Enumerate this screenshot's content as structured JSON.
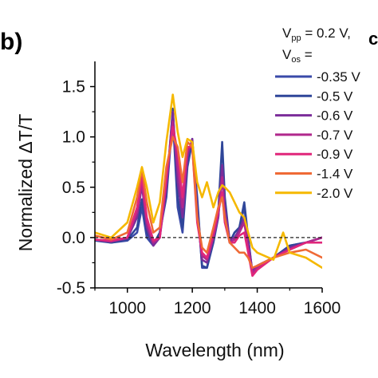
{
  "panel_label": "b)",
  "clipped_label": "c",
  "chart_data": {
    "type": "line",
    "title": "",
    "xlabel": "Wavelength (nm)",
    "ylabel_prefix": "Normalized ",
    "ylabel_main": "ΔT/T",
    "xlim": [
      900,
      1600
    ],
    "ylim": [
      -0.5,
      1.75
    ],
    "xticks": [
      1000,
      1200,
      1400,
      1600
    ],
    "xtick_labels": [
      "1000",
      "1200",
      "1400",
      "1600"
    ],
    "yticks": [
      -0.5,
      0.0,
      0.5,
      1.0,
      1.5
    ],
    "ytick_labels": [
      "-0.5",
      "0.0",
      "0.5",
      "1.0",
      "1.5"
    ],
    "zero_line": true,
    "grid": false,
    "legend": {
      "placement": "top-right",
      "line1_prefix": "V",
      "line1_sub": "pp",
      "line1_suffix": " = 0.2 V,",
      "line2_prefix": "V",
      "line2_sub": "os",
      "line2_suffix": " ="
    },
    "series": [
      {
        "name": "-0.35 V",
        "color": "#3a4aa8",
        "points": [
          [
            900,
            -0.03
          ],
          [
            950,
            -0.05
          ],
          [
            1000,
            -0.03
          ],
          [
            1030,
            0.05
          ],
          [
            1045,
            0.3
          ],
          [
            1060,
            0.0
          ],
          [
            1080,
            -0.08
          ],
          [
            1100,
            0.05
          ],
          [
            1120,
            0.4
          ],
          [
            1140,
            1.2
          ],
          [
            1155,
            0.3
          ],
          [
            1170,
            0.05
          ],
          [
            1185,
            0.7
          ],
          [
            1200,
            0.95
          ],
          [
            1215,
            0.4
          ],
          [
            1230,
            -0.3
          ],
          [
            1245,
            -0.3
          ],
          [
            1265,
            -0.05
          ],
          [
            1280,
            0.2
          ],
          [
            1292,
            0.65
          ],
          [
            1300,
            0.3
          ],
          [
            1315,
            -0.05
          ],
          [
            1330,
            0.05
          ],
          [
            1345,
            0.1
          ],
          [
            1360,
            0.3
          ],
          [
            1372,
            0.0
          ],
          [
            1385,
            -0.37
          ],
          [
            1400,
            -0.3
          ],
          [
            1450,
            -0.2
          ],
          [
            1500,
            -0.08
          ],
          [
            1550,
            -0.05
          ],
          [
            1600,
            0.0
          ]
        ]
      },
      {
        "name": "-0.5 V",
        "color": "#2f4699",
        "points": [
          [
            900,
            -0.02
          ],
          [
            950,
            -0.05
          ],
          [
            1000,
            -0.02
          ],
          [
            1030,
            0.1
          ],
          [
            1045,
            0.38
          ],
          [
            1060,
            0.05
          ],
          [
            1080,
            -0.07
          ],
          [
            1100,
            0.05
          ],
          [
            1120,
            0.45
          ],
          [
            1140,
            1.28
          ],
          [
            1155,
            0.4
          ],
          [
            1170,
            0.1
          ],
          [
            1185,
            0.75
          ],
          [
            1200,
            0.98
          ],
          [
            1215,
            0.35
          ],
          [
            1230,
            -0.28
          ],
          [
            1245,
            -0.3
          ],
          [
            1265,
            -0.02
          ],
          [
            1280,
            0.25
          ],
          [
            1292,
            0.95
          ],
          [
            1300,
            0.4
          ],
          [
            1315,
            -0.05
          ],
          [
            1330,
            0.05
          ],
          [
            1345,
            0.1
          ],
          [
            1360,
            0.35
          ],
          [
            1372,
            0.0
          ],
          [
            1385,
            -0.35
          ],
          [
            1400,
            -0.28
          ],
          [
            1450,
            -0.2
          ],
          [
            1500,
            -0.08
          ],
          [
            1550,
            -0.05
          ],
          [
            1600,
            0.0
          ]
        ]
      },
      {
        "name": "-0.6 V",
        "color": "#7b2d9a",
        "points": [
          [
            900,
            -0.02
          ],
          [
            950,
            -0.04
          ],
          [
            1000,
            -0.01
          ],
          [
            1030,
            0.2
          ],
          [
            1045,
            0.52
          ],
          [
            1060,
            0.1
          ],
          [
            1080,
            -0.08
          ],
          [
            1100,
            0.0
          ],
          [
            1120,
            0.5
          ],
          [
            1140,
            1.25
          ],
          [
            1155,
            0.55
          ],
          [
            1170,
            0.2
          ],
          [
            1185,
            0.8
          ],
          [
            1200,
            0.98
          ],
          [
            1215,
            0.25
          ],
          [
            1230,
            -0.22
          ],
          [
            1245,
            -0.25
          ],
          [
            1265,
            0.0
          ],
          [
            1280,
            0.2
          ],
          [
            1292,
            0.72
          ],
          [
            1300,
            0.3
          ],
          [
            1315,
            -0.02
          ],
          [
            1330,
            0.0
          ],
          [
            1345,
            0.08
          ],
          [
            1360,
            0.2
          ],
          [
            1372,
            -0.05
          ],
          [
            1385,
            -0.33
          ],
          [
            1400,
            -0.28
          ],
          [
            1450,
            -0.2
          ],
          [
            1500,
            -0.1
          ],
          [
            1550,
            -0.05
          ],
          [
            1600,
            0.0
          ]
        ]
      },
      {
        "name": "-0.7 V",
        "color": "#b0288c",
        "points": [
          [
            900,
            -0.02
          ],
          [
            950,
            -0.04
          ],
          [
            1000,
            0.0
          ],
          [
            1030,
            0.25
          ],
          [
            1045,
            0.55
          ],
          [
            1060,
            0.15
          ],
          [
            1080,
            -0.05
          ],
          [
            1100,
            0.0
          ],
          [
            1120,
            0.55
          ],
          [
            1140,
            1.15
          ],
          [
            1155,
            0.7
          ],
          [
            1170,
            0.3
          ],
          [
            1185,
            0.85
          ],
          [
            1200,
            0.95
          ],
          [
            1215,
            0.2
          ],
          [
            1230,
            -0.18
          ],
          [
            1245,
            -0.22
          ],
          [
            1265,
            0.0
          ],
          [
            1280,
            0.25
          ],
          [
            1292,
            0.6
          ],
          [
            1300,
            0.2
          ],
          [
            1315,
            -0.05
          ],
          [
            1330,
            -0.02
          ],
          [
            1345,
            0.05
          ],
          [
            1360,
            0.15
          ],
          [
            1372,
            -0.1
          ],
          [
            1385,
            -0.35
          ],
          [
            1400,
            -0.3
          ],
          [
            1450,
            -0.2
          ],
          [
            1500,
            -0.12
          ],
          [
            1550,
            -0.05
          ],
          [
            1600,
            0.0
          ]
        ]
      },
      {
        "name": "-0.9 V",
        "color": "#e0267a",
        "points": [
          [
            900,
            -0.02
          ],
          [
            950,
            -0.03
          ],
          [
            1000,
            0.0
          ],
          [
            1030,
            0.3
          ],
          [
            1045,
            0.6
          ],
          [
            1060,
            0.2
          ],
          [
            1080,
            -0.03
          ],
          [
            1100,
            0.0
          ],
          [
            1120,
            0.6
          ],
          [
            1140,
            1.1
          ],
          [
            1155,
            0.85
          ],
          [
            1170,
            0.4
          ],
          [
            1185,
            0.9
          ],
          [
            1200,
            0.9
          ],
          [
            1215,
            0.15
          ],
          [
            1230,
            -0.15
          ],
          [
            1245,
            -0.2
          ],
          [
            1265,
            0.05
          ],
          [
            1280,
            0.25
          ],
          [
            1292,
            0.45
          ],
          [
            1300,
            0.15
          ],
          [
            1315,
            -0.05
          ],
          [
            1330,
            -0.05
          ],
          [
            1345,
            0.02
          ],
          [
            1360,
            0.05
          ],
          [
            1372,
            -0.15
          ],
          [
            1385,
            -0.38
          ],
          [
            1400,
            -0.32
          ],
          [
            1450,
            -0.2
          ],
          [
            1500,
            -0.12
          ],
          [
            1550,
            -0.05
          ],
          [
            1600,
            -0.05
          ]
        ]
      },
      {
        "name": "-1.4 V",
        "color": "#ef6a36",
        "points": [
          [
            900,
            0.02
          ],
          [
            950,
            -0.02
          ],
          [
            1000,
            0.05
          ],
          [
            1030,
            0.4
          ],
          [
            1045,
            0.68
          ],
          [
            1060,
            0.35
          ],
          [
            1080,
            0.05
          ],
          [
            1100,
            0.1
          ],
          [
            1120,
            0.7
          ],
          [
            1140,
            1.0
          ],
          [
            1155,
            0.9
          ],
          [
            1170,
            0.55
          ],
          [
            1185,
            0.95
          ],
          [
            1200,
            0.9
          ],
          [
            1215,
            0.2
          ],
          [
            1230,
            -0.1
          ],
          [
            1245,
            -0.15
          ],
          [
            1265,
            0.1
          ],
          [
            1280,
            0.3
          ],
          [
            1292,
            0.4
          ],
          [
            1300,
            0.2
          ],
          [
            1315,
            -0.05
          ],
          [
            1330,
            -0.1
          ],
          [
            1345,
            -0.15
          ],
          [
            1360,
            -0.15
          ],
          [
            1372,
            -0.2
          ],
          [
            1385,
            -0.3
          ],
          [
            1400,
            -0.28
          ],
          [
            1450,
            -0.2
          ],
          [
            1500,
            -0.15
          ],
          [
            1550,
            -0.12
          ],
          [
            1600,
            -0.2
          ]
        ]
      },
      {
        "name": "-2.0 V",
        "color": "#f5b800",
        "points": [
          [
            900,
            0.05
          ],
          [
            950,
            0.0
          ],
          [
            1000,
            0.15
          ],
          [
            1030,
            0.5
          ],
          [
            1045,
            0.7
          ],
          [
            1060,
            0.5
          ],
          [
            1080,
            0.15
          ],
          [
            1100,
            0.35
          ],
          [
            1120,
            0.95
          ],
          [
            1140,
            1.42
          ],
          [
            1155,
            1.05
          ],
          [
            1170,
            0.8
          ],
          [
            1185,
            0.98
          ],
          [
            1200,
            0.95
          ],
          [
            1215,
            0.55
          ],
          [
            1230,
            0.4
          ],
          [
            1245,
            0.55
          ],
          [
            1265,
            0.3
          ],
          [
            1280,
            0.45
          ],
          [
            1292,
            0.52
          ],
          [
            1300,
            0.5
          ],
          [
            1315,
            0.45
          ],
          [
            1330,
            0.35
          ],
          [
            1345,
            0.25
          ],
          [
            1360,
            0.2
          ],
          [
            1372,
            0.05
          ],
          [
            1385,
            -0.1
          ],
          [
            1400,
            -0.15
          ],
          [
            1450,
            -0.22
          ],
          [
            1480,
            0.05
          ],
          [
            1500,
            -0.15
          ],
          [
            1550,
            -0.2
          ],
          [
            1600,
            -0.3
          ]
        ]
      }
    ]
  }
}
